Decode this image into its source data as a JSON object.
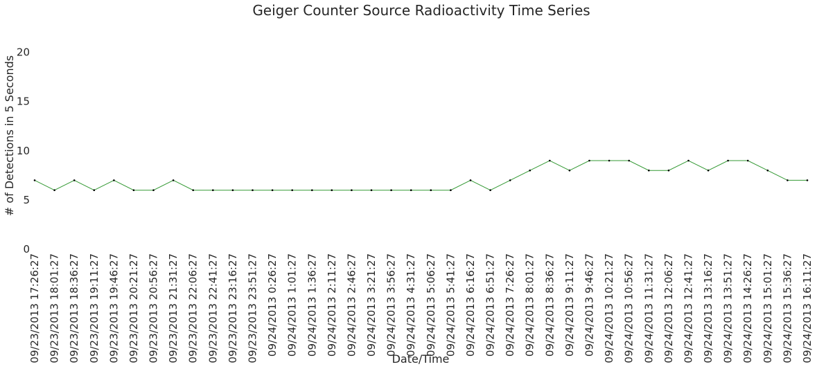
{
  "chart_data": {
    "type": "line",
    "title": "Geiger Counter Source Radioactivity Time Series",
    "xlabel": "Date/Time",
    "ylabel": "# of Detections in 5 Seconds",
    "ylim": [
      0,
      22.5
    ],
    "yticks": [
      0,
      5,
      10,
      15,
      20
    ],
    "grid": false,
    "legend": "none",
    "line_color": "#008000",
    "marker_color": "#000000",
    "xlim": [
      "09/23/2013 17:26:27",
      "09/24/2013 16:11:27"
    ],
    "xticks": [
      "09/23/2013 17:26:27",
      "09/23/2013 18:01:27",
      "09/23/2013 18:36:27",
      "09/23/2013 19:11:27",
      "09/23/2013 19:46:27",
      "09/23/2013 20:21:27",
      "09/23/2013 20:56:27",
      "09/23/2013 21:31:27",
      "09/23/2013 22:06:27",
      "09/23/2013 22:41:27",
      "09/23/2013 23:16:27",
      "09/23/2013 23:51:27",
      "09/24/2013 0:26:27",
      "09/24/2013 1:01:27",
      "09/24/2013 1:36:27",
      "09/24/2013 2:11:27",
      "09/24/2013 2:46:27",
      "09/24/2013 3:21:27",
      "09/24/2013 3:56:27",
      "09/24/2013 4:31:27",
      "09/24/2013 5:06:27",
      "09/24/2013 5:41:27",
      "09/24/2013 6:16:27",
      "09/24/2013 6:51:27",
      "09/24/2013 7:26:27",
      "09/24/2013 8:01:27",
      "09/24/2013 8:36:27",
      "09/24/2013 9:11:27",
      "09/24/2013 9:46:27",
      "09/24/2013 10:21:27",
      "09/24/2013 10:56:27",
      "09/24/2013 11:31:27",
      "09/24/2013 12:06:27",
      "09/24/2013 12:41:27",
      "09/24/2013 13:16:27",
      "09/24/2013 13:51:27",
      "09/24/2013 14:26:27",
      "09/24/2013 15:01:27",
      "09/24/2013 15:36:27",
      "09/24/2013 16:11:27"
    ],
    "series": [
      {
        "x": [
          "09/23/2013 17:26:27",
          "09/23/2013 18:01:27",
          "09/23/2013 18:36:27",
          "09/23/2013 19:11:27",
          "09/23/2013 19:46:27",
          "09/23/2013 20:21:27",
          "09/23/2013 20:56:27",
          "09/23/2013 21:31:27",
          "09/23/2013 22:06:27",
          "09/23/2013 22:41:27",
          "09/23/2013 23:16:27",
          "09/23/2013 23:51:27",
          "09/24/2013 0:26:27",
          "09/24/2013 1:01:27",
          "09/24/2013 1:36:27",
          "09/24/2013 2:11:27",
          "09/24/2013 2:46:27",
          "09/24/2013 3:21:27",
          "09/24/2013 3:56:27",
          "09/24/2013 4:31:27",
          "09/24/2013 5:06:27",
          "09/24/2013 5:41:27",
          "09/24/2013 6:16:27",
          "09/24/2013 6:51:27",
          "09/24/2013 7:26:27",
          "09/24/2013 8:01:27",
          "09/24/2013 8:36:27",
          "09/24/2013 9:11:27",
          "09/24/2013 9:46:27",
          "09/24/2013 10:21:27",
          "09/24/2013 10:56:27",
          "09/24/2013 11:31:27",
          "09/24/2013 12:06:27",
          "09/24/2013 12:41:27",
          "09/24/2013 13:16:27",
          "09/24/2013 13:51:27",
          "09/24/2013 14:26:27",
          "09/24/2013 15:01:27",
          "09/24/2013 15:36:27",
          "09/24/2013 16:11:27"
        ],
        "values": [
          7,
          6,
          7,
          6,
          7,
          6,
          6,
          7,
          6,
          6,
          6,
          6,
          6,
          6,
          6,
          6,
          6,
          6,
          6,
          6,
          6,
          6,
          7,
          6,
          7,
          8,
          9,
          8,
          9,
          9,
          9,
          8,
          8,
          9,
          8,
          9,
          9,
          8,
          7,
          7
        ]
      }
    ]
  }
}
